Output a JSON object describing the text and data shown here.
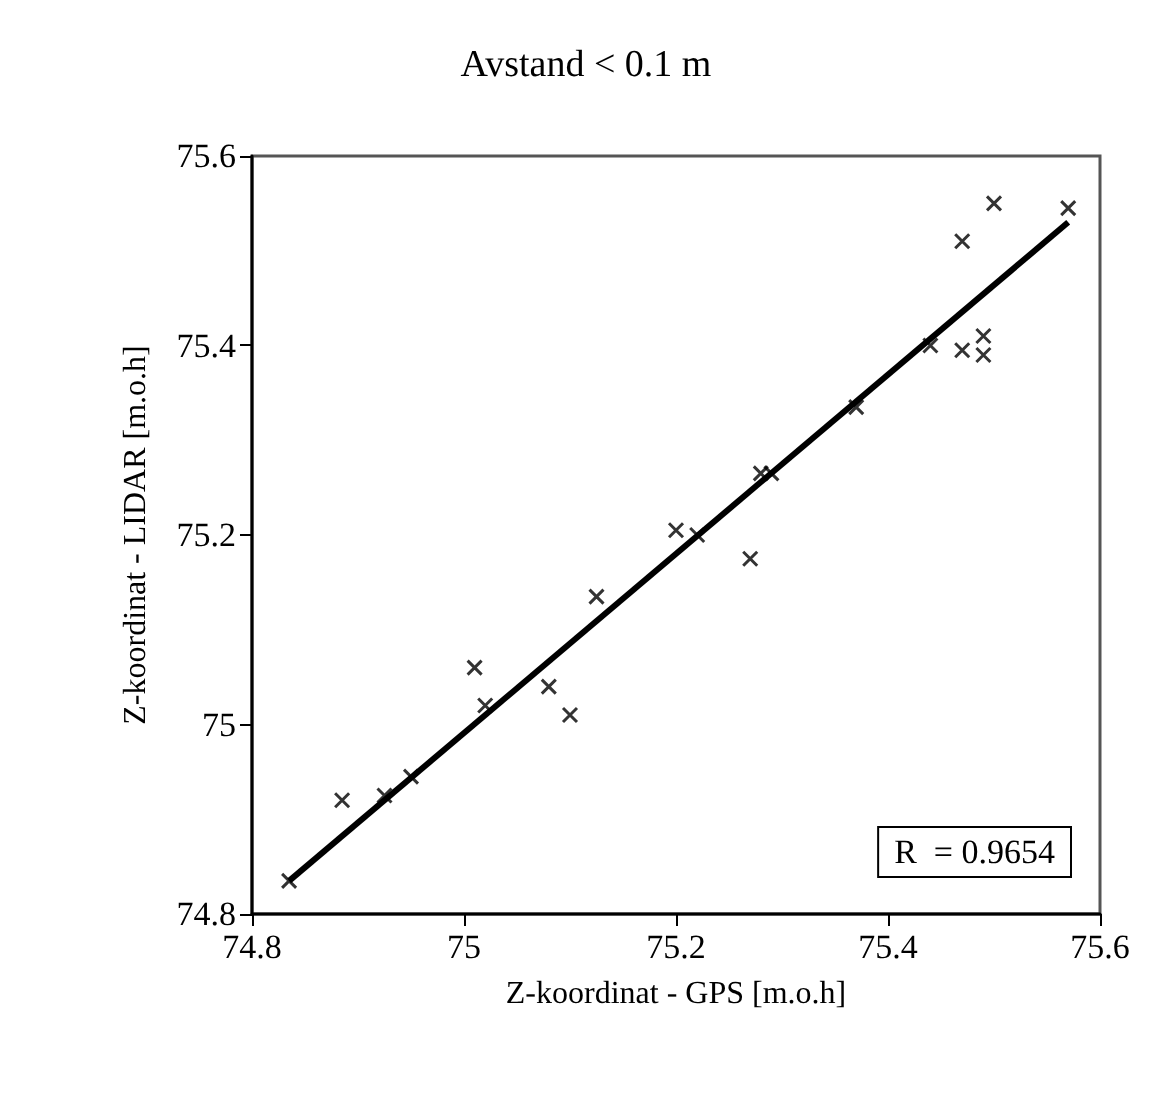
{
  "chart_data": {
    "type": "scatter",
    "title": "Avstand < 0.1 m",
    "xlabel": "Z-koordinat - GPS [m.o.h]",
    "ylabel": "Z-koordinat - LIDAR [m.o.h]",
    "grid": false,
    "series": [
      {
        "color": "#000000",
        "marker": "cross",
        "x": [
          75.5,
          75.57,
          75.47,
          75.44,
          75.47,
          75.49,
          75.49,
          75.37,
          75.28,
          75.29,
          75.27,
          75.22,
          75.2,
          75.125,
          75.08,
          75.1,
          75.01,
          75.02,
          74.95,
          74.925,
          74.885,
          74.835
        ],
        "values": [
          75.55,
          75.545,
          75.51,
          75.4,
          75.395,
          75.41,
          75.39,
          75.335,
          75.265,
          75.265,
          75.175,
          75.2,
          75.205,
          75.135,
          75.04,
          75.01,
          75.06,
          75.02,
          74.945,
          74.925,
          74.92,
          74.835
        ]
      },
      {
        "type": "line",
        "color": "#000000",
        "marker": "none",
        "line_style": "solid",
        "x": [
          74.835,
          75.57
        ],
        "values": [
          74.835,
          75.53
        ]
      }
    ],
    "xlim": [
      74.8,
      75.6
    ],
    "xticks": [
      74.8,
      75,
      75.2,
      75.4,
      75.6
    ],
    "ylim": [
      74.8,
      75.6
    ],
    "yticks": [
      74.8,
      75,
      75.2,
      75.4,
      75.6
    ],
    "annotations": [
      "R  = 0.9654"
    ]
  }
}
